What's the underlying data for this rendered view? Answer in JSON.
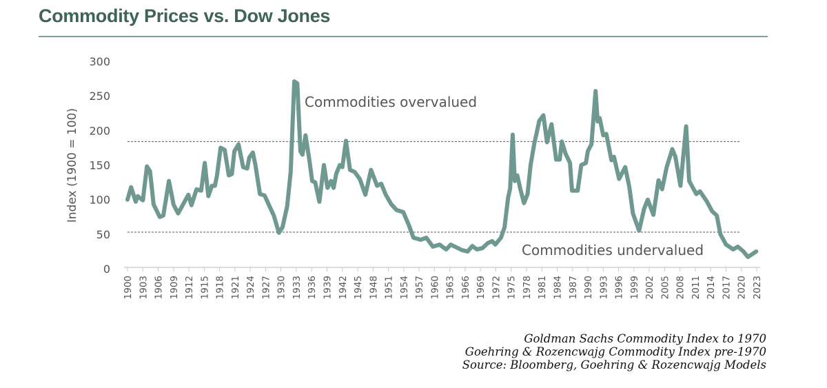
{
  "title": "Commodity Prices vs. Dow Jones",
  "source_lines": [
    "Goldman Sachs Commodity Index to 1970",
    "Goehring & Rozencwajg Commodity Index pre-1970",
    "Source: Bloomberg, Goehring & Rozencwajg Models"
  ],
  "chart_data": {
    "type": "line",
    "title": "Commodity Prices vs. Dow Jones",
    "xlabel": "",
    "ylabel": "Index (1900 = 100)",
    "xlim": [
      1900,
      2023
    ],
    "ylim": [
      0,
      300
    ],
    "yticks": [
      0,
      50,
      100,
      150,
      200,
      250,
      300
    ],
    "xticks": [
      1900,
      1903,
      1906,
      1909,
      1912,
      1915,
      1918,
      1921,
      1924,
      1927,
      1930,
      1933,
      1936,
      1939,
      1942,
      1945,
      1948,
      1951,
      1954,
      1957,
      1960,
      1963,
      1966,
      1969,
      1972,
      1975,
      1978,
      1981,
      1984,
      1987,
      1990,
      1993,
      1996,
      1999,
      2002,
      2005,
      2008,
      2011,
      2014,
      2017,
      2020,
      2023
    ],
    "grid": false,
    "series_color": "#6f9990",
    "reference_lines": [
      {
        "y": 184,
        "style": "dashed",
        "label": "Commodities overvalued"
      },
      {
        "y": 53,
        "style": "dashed",
        "label": "Commodities undervalued"
      }
    ],
    "x": [
      1900,
      1900.7,
      1901.6,
      1902,
      1903,
      1903.8,
      1904.4,
      1905.1,
      1906.3,
      1907,
      1908.1,
      1909,
      1909.9,
      1911,
      1911.9,
      1912.5,
      1913.5,
      1914.4,
      1915.1,
      1915.8,
      1916.5,
      1917.1,
      1917.5,
      1918.2,
      1919,
      1919.8,
      1920.4,
      1920.9,
      1921.7,
      1922.6,
      1923.4,
      1923.8,
      1924.5,
      1925,
      1925.9,
      1926.8,
      1927.6,
      1928.6,
      1929.6,
      1930.3,
      1931.2,
      1931.9,
      1932.6,
      1933.2,
      1933.8,
      1934.2,
      1934.8,
      1935.5,
      1936.1,
      1936.7,
      1937.5,
      1938.4,
      1939.1,
      1939.8,
      1940.3,
      1940.8,
      1941.5,
      1942,
      1942.7,
      1943.5,
      1944.4,
      1945.4,
      1946.5,
      1947.6,
      1948.8,
      1949.6,
      1950.5,
      1951.6,
      1952.6,
      1953.9,
      1955,
      1955.9,
      1957.3,
      1958.4,
      1959.7,
      1961,
      1962.3,
      1963.2,
      1965.4,
      1966.5,
      1967.4,
      1968.3,
      1969.4,
      1970.4,
      1971.3,
      1971.9,
      1973,
      1973.7,
      1974.4,
      1974.8,
      1975.3,
      1975.7,
      1976.2,
      1976.8,
      1977.5,
      1978.2,
      1978.8,
      1979.5,
      1980.5,
      1981.3,
      1982,
      1982.9,
      1983.8,
      1984.5,
      1984.9,
      1985.6,
      1986.5,
      1986.9,
      1988,
      1988.7,
      1989.6,
      1990,
      1990.7,
      1991.5,
      1991.9,
      1992.3,
      1993,
      1993.6,
      1994.6,
      1995.1,
      1996.1,
      1997.3,
      1998.1,
      1998.8,
      2000,
      2001,
      2001.7,
      2002.8,
      2003.8,
      2004.5,
      2005.4,
      2006.5,
      2007.1,
      2008.1,
      2009.2,
      2009.8,
      2011.2,
      2011.9,
      2013.2,
      2014.3,
      2015.2,
      2015.9,
      2017,
      2018.4,
      2019.3,
      2020.4,
      2021.3,
      2022.9
    ],
    "y": [
      100,
      118,
      97,
      105,
      99,
      148,
      141,
      93,
      75,
      77,
      127,
      93,
      80,
      95,
      107,
      92,
      115,
      113,
      153,
      105,
      120,
      120,
      135,
      175,
      172,
      135,
      137,
      170,
      180,
      147,
      145,
      161,
      168,
      150,
      108,
      106,
      93,
      77,
      52,
      60,
      90,
      140,
      271,
      268,
      170,
      165,
      193,
      160,
      127,
      125,
      97,
      150,
      117,
      127,
      117,
      137,
      150,
      147,
      185,
      143,
      140,
      130,
      107,
      143,
      120,
      123,
      107,
      93,
      85,
      82,
      63,
      45,
      42,
      45,
      32,
      35,
      28,
      35,
      27,
      25,
      33,
      28,
      30,
      37,
      40,
      35,
      45,
      60,
      103,
      116,
      194,
      127,
      135,
      115,
      95,
      108,
      150,
      180,
      214,
      222,
      183,
      209,
      158,
      158,
      184,
      167,
      153,
      113,
      113,
      150,
      153,
      170,
      180,
      257,
      213,
      218,
      193,
      195,
      157,
      162,
      130,
      147,
      118,
      80,
      55,
      87,
      100,
      78,
      128,
      115,
      147,
      173,
      162,
      120,
      206,
      127,
      108,
      112,
      98,
      83,
      77,
      50,
      35,
      28,
      32,
      25,
      17,
      25
    ]
  }
}
